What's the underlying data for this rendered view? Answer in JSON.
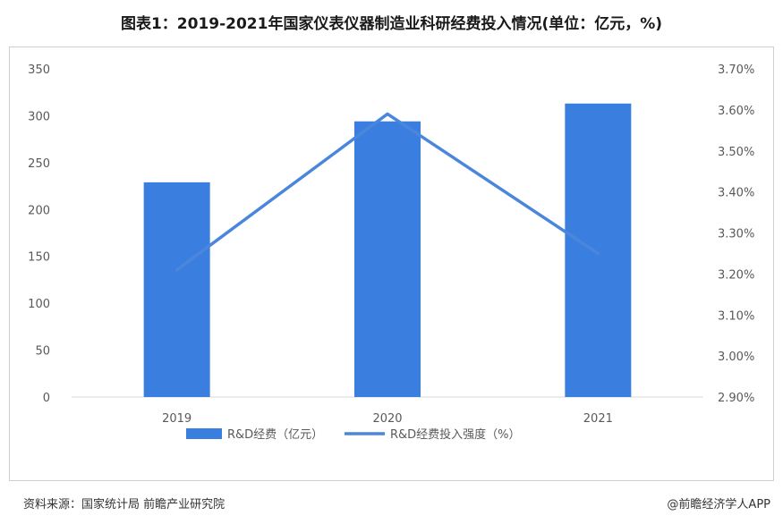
{
  "title": "图表1：2019-2021年国家仪表仪器制造业科研经费投入情况(单位：亿元，%)",
  "source": "资料来源：国家统计局 前瞻产业研究院",
  "credit": "@前瞻经济学人APP",
  "colors": {
    "bar": "#3a7fe0",
    "line": "#4a86dc",
    "axis": "#d9d9d9",
    "text": "#595959"
  },
  "chart_data": {
    "type": "bar",
    "categories": [
      "2019",
      "2020",
      "2021"
    ],
    "series": [
      {
        "name": "R&D经费（亿元）",
        "type": "bar",
        "axis": "left",
        "values": [
          229,
          294,
          313
        ]
      },
      {
        "name": "R&D经费投入强度（%）",
        "type": "line",
        "axis": "right",
        "values": [
          3.21,
          3.59,
          3.25
        ]
      }
    ],
    "y_left": {
      "min": 0,
      "max": 350,
      "ticks": [
        0,
        50,
        100,
        150,
        200,
        250,
        300,
        350
      ]
    },
    "y_right": {
      "min": 2.9,
      "max": 3.7,
      "ticks": [
        "2.90%",
        "3.00%",
        "3.10%",
        "3.20%",
        "3.30%",
        "3.40%",
        "3.50%",
        "3.60%",
        "3.70%"
      ]
    },
    "legend_position": "bottom",
    "grid": false
  }
}
